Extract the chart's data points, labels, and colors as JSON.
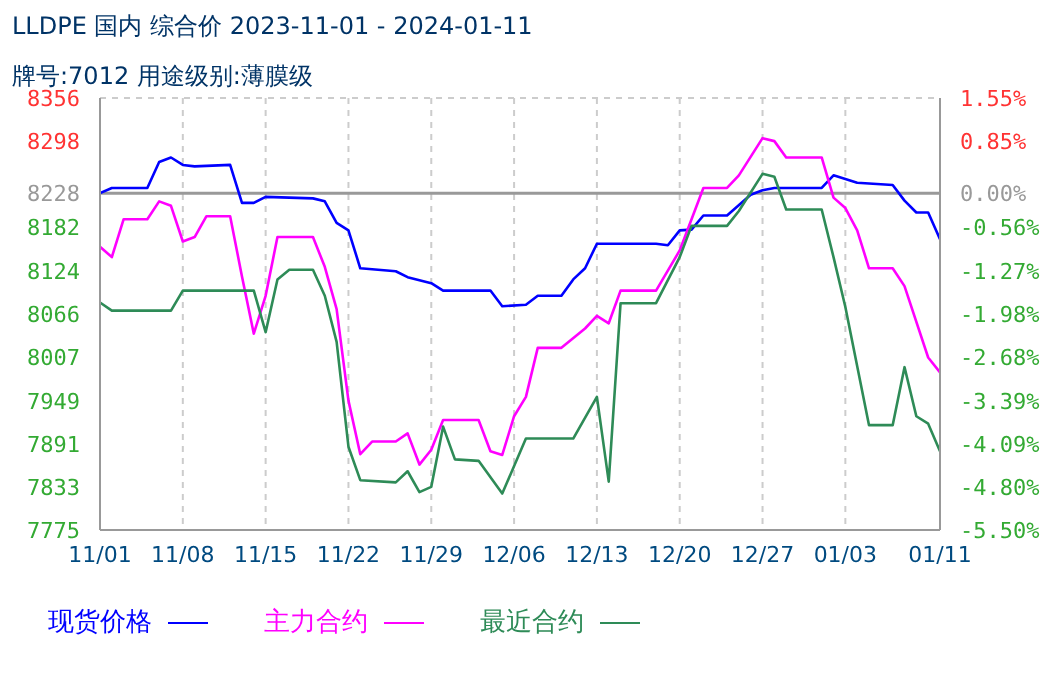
{
  "chart_data": {
    "type": "line",
    "title": "LLDPE 国内 综合价 2023-11-01 - 2024-01-11",
    "subtitle": "牌号:7012 用途级别:薄膜级",
    "xlim": [
      "2023-11-01",
      "2024-01-11"
    ],
    "xticks": [
      {
        "value": "2023-11-01",
        "label": "11/01"
      },
      {
        "value": "2023-11-08",
        "label": "11/08"
      },
      {
        "value": "2023-11-15",
        "label": "11/15"
      },
      {
        "value": "2023-11-22",
        "label": "11/22"
      },
      {
        "value": "2023-11-29",
        "label": "11/29"
      },
      {
        "value": "2023-12-06",
        "label": "12/06"
      },
      {
        "value": "2023-12-13",
        "label": "12/13"
      },
      {
        "value": "2023-12-20",
        "label": "12/20"
      },
      {
        "value": "2023-12-27",
        "label": "12/27"
      },
      {
        "value": "2024-01-03",
        "label": "01/03"
      },
      {
        "value": "2024-01-11",
        "label": "01/11"
      }
    ],
    "ylim": [
      7775,
      8356
    ],
    "yticks": [
      7775,
      7833,
      7891,
      7949,
      8007,
      8066,
      8124,
      8182,
      8228,
      8298,
      8356
    ],
    "y2lim": [
      -5.5,
      1.55
    ],
    "y2ticks": [
      {
        "value": -5.5,
        "label": "-5.50%"
      },
      {
        "value": -4.8,
        "label": "-4.80%"
      },
      {
        "value": -4.09,
        "label": "-4.09%"
      },
      {
        "value": -3.39,
        "label": "-3.39%"
      },
      {
        "value": -2.68,
        "label": "-2.68%"
      },
      {
        "value": -1.98,
        "label": "-1.98%"
      },
      {
        "value": -1.27,
        "label": "-1.27%"
      },
      {
        "value": -0.56,
        "label": "-0.56%"
      },
      {
        "value": 0,
        "label": "0.00%"
      },
      {
        "value": 0.85,
        "label": "0.85%"
      },
      {
        "value": 1.55,
        "label": "1.55%"
      }
    ],
    "ref_lines": [
      {
        "axis": "y",
        "value": 8228,
        "color": "#999999"
      }
    ],
    "grid": true,
    "legend": "bottom",
    "marker": "none",
    "line_style": "solid",
    "series": [
      {
        "name": "现货价格",
        "color": "#0000ff",
        "x": [
          "2023-11-01",
          "2023-11-02",
          "2023-11-05",
          "2023-11-06",
          "2023-11-07",
          "2023-11-08",
          "2023-11-09",
          "2023-11-12",
          "2023-11-13",
          "2023-11-14",
          "2023-11-15",
          "2023-11-19",
          "2023-11-20",
          "2023-11-21",
          "2023-11-22",
          "2023-11-23",
          "2023-11-26",
          "2023-11-27",
          "2023-11-29",
          "2023-11-30",
          "2023-12-04",
          "2023-12-05",
          "2023-12-07",
          "2023-12-08",
          "2023-12-10",
          "2023-12-11",
          "2023-12-12",
          "2023-12-13",
          "2023-12-18",
          "2023-12-19",
          "2023-12-20",
          "2023-12-21",
          "2023-12-22",
          "2023-12-24",
          "2023-12-26",
          "2023-12-27",
          "2023-12-28",
          "2024-01-01",
          "2024-01-02",
          "2024-01-04",
          "2024-01-07",
          "2024-01-08",
          "2024-01-09",
          "2024-01-10",
          "2024-01-11"
        ],
        "values": [
          8228,
          8235,
          8235,
          8270,
          8276,
          8266,
          8264,
          8266,
          8215,
          8215,
          8223,
          8221,
          8217,
          8188,
          8178,
          8127,
          8123,
          8115,
          8107,
          8097,
          8097,
          8076,
          8078,
          8090,
          8090,
          8112,
          8127,
          8160,
          8160,
          8158,
          8178,
          8179,
          8198,
          8198,
          8226,
          8232,
          8235,
          8235,
          8252,
          8242,
          8239,
          8218,
          8202,
          8202,
          8166
        ]
      },
      {
        "name": "主力合约",
        "color": "#ff00ff",
        "x": [
          "2023-11-01",
          "2023-11-02",
          "2023-11-03",
          "2023-11-05",
          "2023-11-06",
          "2023-11-07",
          "2023-11-08",
          "2023-11-09",
          "2023-11-10",
          "2023-11-12",
          "2023-11-13",
          "2023-11-14",
          "2023-11-15",
          "2023-11-16",
          "2023-11-19",
          "2023-11-20",
          "2023-11-21",
          "2023-11-22",
          "2023-11-23",
          "2023-11-24",
          "2023-11-26",
          "2023-11-27",
          "2023-11-28",
          "2023-11-29",
          "2023-11-30",
          "2023-12-03",
          "2023-12-04",
          "2023-12-05",
          "2023-12-06",
          "2023-12-07",
          "2023-12-08",
          "2023-12-10",
          "2023-12-12",
          "2023-12-13",
          "2023-12-14",
          "2023-12-15",
          "2023-12-18",
          "2023-12-20",
          "2023-12-22",
          "2023-12-24",
          "2023-12-25",
          "2023-12-27",
          "2023-12-28",
          "2023-12-29",
          "2024-01-01",
          "2024-01-02",
          "2024-01-03",
          "2024-01-04",
          "2024-01-05",
          "2024-01-07",
          "2024-01-08",
          "2024-01-10",
          "2024-01-11"
        ],
        "values": [
          8156,
          8142,
          8193,
          8193,
          8217,
          8211,
          8163,
          8169,
          8197,
          8197,
          8116,
          8039,
          8090,
          8169,
          8169,
          8129,
          8072,
          7949,
          7877,
          7894,
          7894,
          7905,
          7863,
          7883,
          7923,
          7923,
          7881,
          7876,
          7928,
          7954,
          8020,
          8020,
          8046,
          8063,
          8053,
          8097,
          8097,
          8151,
          8235,
          8235,
          8252,
          8302,
          8298,
          8276,
          8276,
          8222,
          8208,
          8178,
          8127,
          8127,
          8103,
          8007,
          7987
        ]
      },
      {
        "name": "最近合约",
        "color": "#2e8b57",
        "x": [
          "2023-11-01",
          "2023-11-02",
          "2023-11-07",
          "2023-11-08",
          "2023-11-14",
          "2023-11-15",
          "2023-11-16",
          "2023-11-17",
          "2023-11-19",
          "2023-11-20",
          "2023-11-21",
          "2023-11-22",
          "2023-11-23",
          "2023-11-26",
          "2023-11-27",
          "2023-11-28",
          "2023-11-29",
          "2023-11-30",
          "2023-12-01",
          "2023-12-03",
          "2023-12-05",
          "2023-12-07",
          "2023-12-11",
          "2023-12-13",
          "2023-12-14",
          "2023-12-15",
          "2023-12-18",
          "2023-12-20",
          "2023-12-21",
          "2023-12-24",
          "2023-12-25",
          "2023-12-27",
          "2023-12-28",
          "2023-12-29",
          "2024-01-01",
          "2024-01-02",
          "2024-01-03",
          "2024-01-05",
          "2024-01-07",
          "2024-01-08",
          "2024-01-09",
          "2024-01-10",
          "2024-01-11"
        ],
        "values": [
          8081,
          8070,
          8070,
          8097,
          8097,
          8041,
          8112,
          8125,
          8125,
          8090,
          8028,
          7887,
          7842,
          7839,
          7854,
          7826,
          7833,
          7914,
          7870,
          7868,
          7824,
          7898,
          7898,
          7954,
          7840,
          8080,
          8080,
          8142,
          8184,
          8184,
          8204,
          8254,
          8250,
          8206,
          8206,
          8142,
          8075,
          7916,
          7916,
          7994,
          7928,
          7918,
          7881
        ]
      }
    ]
  }
}
